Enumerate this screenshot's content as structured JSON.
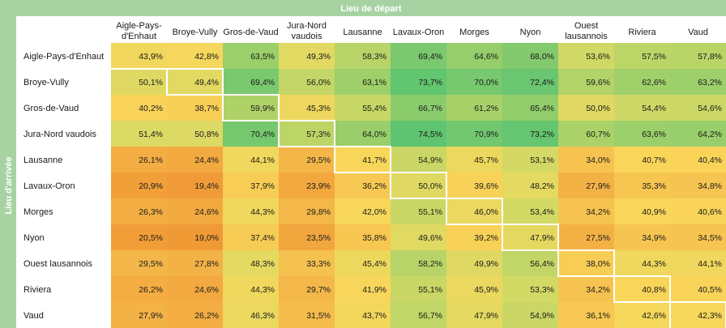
{
  "chart_data": {
    "type": "heatmap",
    "title": "Lieu de départ",
    "ylabel": "Lieu d'arrivée",
    "columns": [
      [
        "Aigle-Pays-",
        "d'Enhaut"
      ],
      [
        "Broye-Vully"
      ],
      [
        "Gros-de-Vaud"
      ],
      [
        "Jura-Nord",
        "vaudois"
      ],
      [
        "Lausanne"
      ],
      [
        "Lavaux-Oron"
      ],
      [
        "Morges"
      ],
      [
        "Nyon"
      ],
      [
        "Ouest",
        "lausannois"
      ],
      [
        "Riviera"
      ],
      [
        "Vaud"
      ]
    ],
    "rows": [
      "Aigle-Pays-d'Enhaut",
      "Broye-Vully",
      "Gros-de-Vaud",
      "Jura-Nord vaudois",
      "Lausanne",
      "Lavaux-Oron",
      "Morges",
      "Nyon",
      "Ouest lausannois",
      "Riviera",
      "Vaud"
    ],
    "values": [
      [
        43.9,
        42.8,
        63.5,
        49.3,
        58.3,
        69.4,
        64.6,
        68.0,
        53.6,
        57.5,
        57.8
      ],
      [
        50.1,
        49.4,
        69.4,
        56.0,
        63.1,
        73.7,
        70.0,
        72.4,
        59.6,
        62.6,
        63.2
      ],
      [
        40.2,
        38.7,
        59.9,
        45.3,
        55.4,
        66.7,
        61.2,
        65.4,
        50.0,
        54.4,
        54.6
      ],
      [
        51.4,
        50.8,
        70.4,
        57.3,
        64.0,
        74.5,
        70.9,
        73.2,
        60.7,
        63.6,
        64.2
      ],
      [
        26.1,
        24.4,
        44.1,
        29.5,
        41.7,
        54.9,
        45.7,
        53.1,
        34.0,
        40.7,
        40.4
      ],
      [
        20.9,
        19.4,
        37.9,
        23.9,
        36.2,
        50.0,
        39.6,
        48.2,
        27.9,
        35.3,
        34.8
      ],
      [
        26.3,
        24.6,
        44.3,
        29.8,
        42.0,
        55.1,
        46.0,
        53.4,
        34.2,
        40.9,
        40.6
      ],
      [
        20.5,
        19.0,
        37.4,
        23.5,
        35.8,
        49.6,
        39.2,
        47.9,
        27.5,
        34.9,
        34.5
      ],
      [
        29.5,
        27.8,
        48.3,
        33.3,
        45.4,
        58.2,
        49.9,
        56.4,
        38.0,
        44.3,
        44.1
      ],
      [
        26.2,
        24.6,
        44.3,
        29.7,
        41.9,
        55.1,
        45.9,
        53.3,
        34.2,
        40.8,
        40.5
      ],
      [
        27.9,
        26.2,
        46.3,
        31.5,
        43.7,
        56.7,
        47.9,
        54.9,
        36.1,
        42.6,
        42.3
      ]
    ],
    "value_suffix": "%",
    "decimal_separator": ",",
    "color_scale": [
      "#f09a36",
      "#f4b84a",
      "#f9d65a",
      "#d8da65",
      "#9ccf6a",
      "#5ec471"
    ],
    "header_color": "#a7d3a3",
    "highlight_color": "#ffffff"
  }
}
